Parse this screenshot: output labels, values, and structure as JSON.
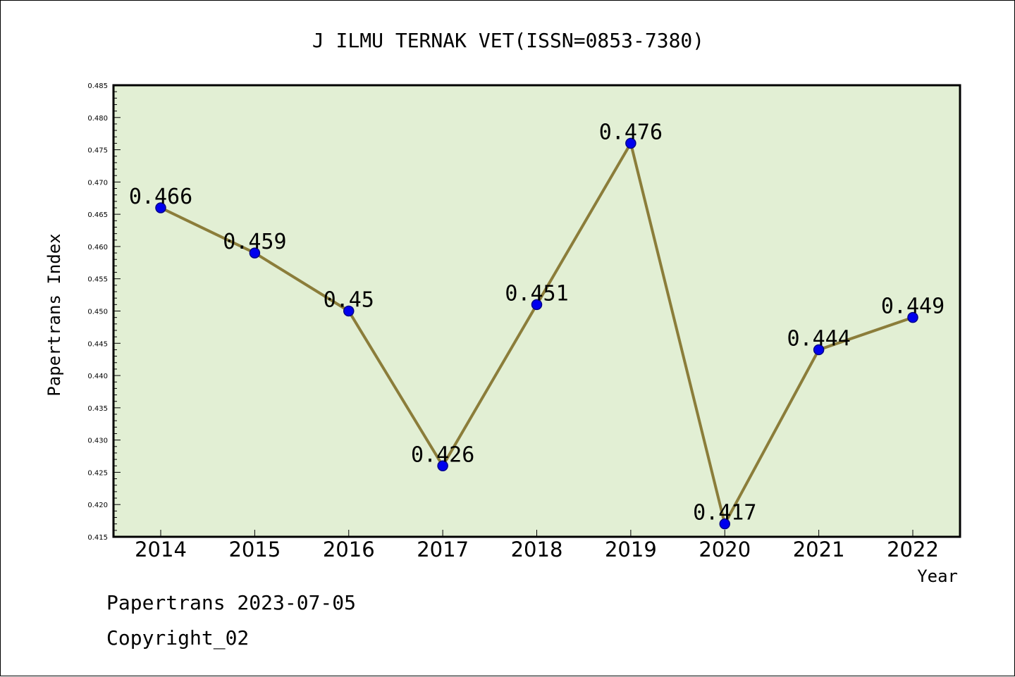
{
  "chart_data": {
    "type": "line",
    "title": "J ILMU TERNAK VET(ISSN=0853-7380)",
    "xlabel": "Year",
    "ylabel": "Papertrans Index",
    "ylim": [
      0.415,
      0.485
    ],
    "yticks": [
      "0.415",
      "0.420",
      "0.425",
      "0.430",
      "0.435",
      "0.440",
      "0.445",
      "0.450",
      "0.455",
      "0.460",
      "0.465",
      "0.470",
      "0.475",
      "0.480",
      "0.485"
    ],
    "categories": [
      "2014",
      "2015",
      "2016",
      "2017",
      "2018",
      "2019",
      "2020",
      "2021",
      "2022"
    ],
    "series": [
      {
        "values": [
          0.466,
          0.459,
          0.45,
          0.426,
          0.451,
          0.476,
          0.417,
          0.444,
          0.449
        ],
        "labels": [
          "0.466",
          "0.459",
          "0.45",
          "0.426",
          "0.451",
          "0.476",
          "0.417",
          "0.444",
          "0.449"
        ]
      }
    ],
    "grid": false,
    "colors": {
      "plot_background": "#e2efd4",
      "line": "#8b7d3a",
      "marker": "#0000ee",
      "marker_edge": "#00008b"
    }
  },
  "footer": {
    "line1": "Papertrans 2023-07-05",
    "line2": "Copyright_02"
  }
}
